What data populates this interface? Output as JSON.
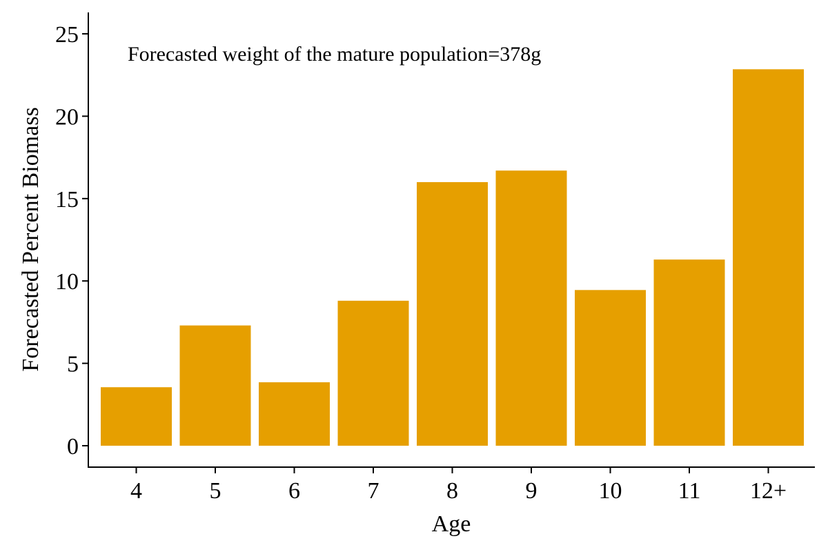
{
  "chart_data": {
    "type": "bar",
    "categories": [
      "4",
      "5",
      "6",
      "7",
      "8",
      "9",
      "10",
      "11",
      "12+"
    ],
    "values": [
      3.55,
      7.3,
      3.85,
      8.8,
      16.0,
      16.7,
      9.45,
      11.3,
      22.85
    ],
    "title": "",
    "xlabel": "Age",
    "ylabel": "Forecasted Percent Biomass",
    "ylim": [
      -1.3,
      26.3
    ],
    "yticks": [
      0,
      5,
      10,
      15,
      20,
      25
    ],
    "ytick_labels": [
      "0",
      "5",
      "10",
      "15",
      "20",
      "25"
    ],
    "grid": false,
    "legend": "none",
    "bar_color": "#E69F00",
    "annotation": "Forecasted weight of the mature population=378g"
  }
}
